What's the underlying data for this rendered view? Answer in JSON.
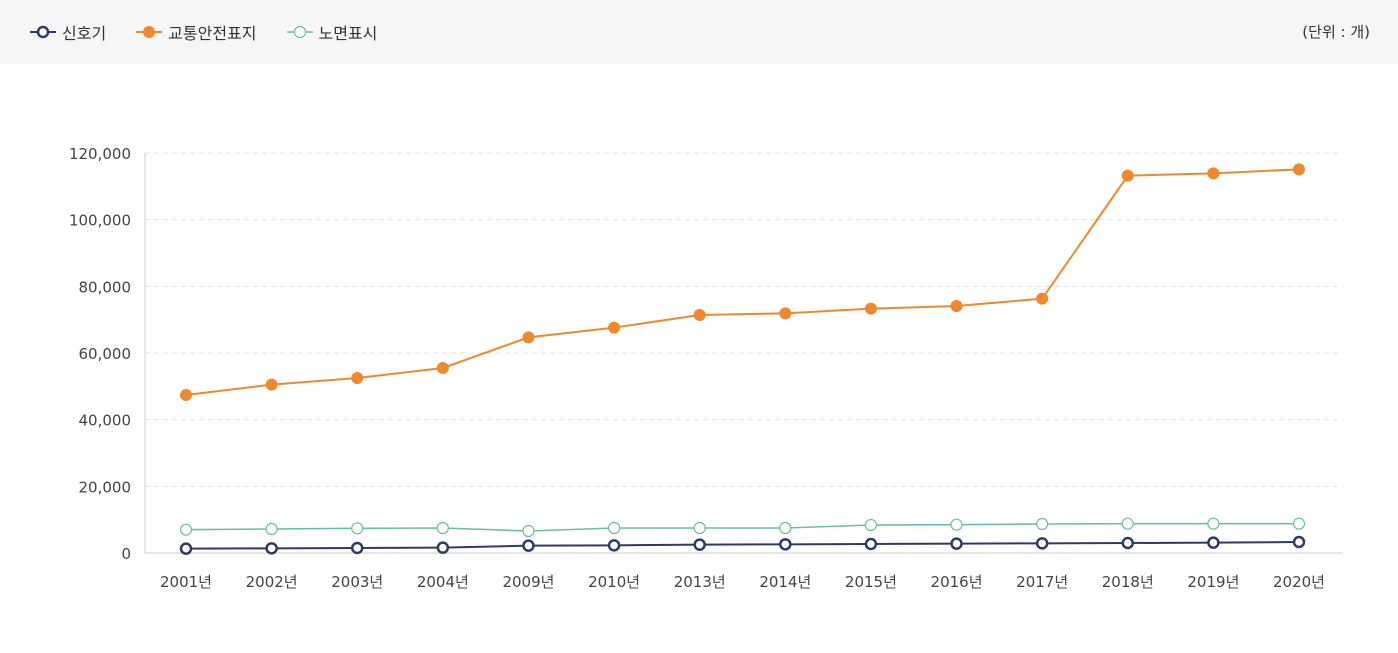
{
  "legend": [
    {
      "label": "신호기",
      "color": "#2f3a6b",
      "marker": "open"
    },
    {
      "label": "교통안전표지",
      "color": "#f0882d",
      "marker": "filled"
    },
    {
      "label": "노면표시",
      "color": "#6cc0a0",
      "marker": "open"
    }
  ],
  "unit_label": "(단위 : 개)",
  "chart_data": {
    "type": "line",
    "categories": [
      "2001년",
      "2002년",
      "2003년",
      "2004년",
      "2009년",
      "2010년",
      "2013년",
      "2014년",
      "2015년",
      "2016년",
      "2017년",
      "2018년",
      "2019년",
      "2020년"
    ],
    "ylim": [
      0,
      120000
    ],
    "yticks": [
      0,
      20000,
      40000,
      60000,
      80000,
      100000,
      120000
    ],
    "ytick_labels": [
      "0",
      "20,000",
      "40,000",
      "60,000",
      "80,000",
      "100,000",
      "120,000"
    ],
    "grid": true,
    "legend_position": "top-left",
    "series": [
      {
        "name": "신호기",
        "color": "#2f3a6b",
        "marker": "open",
        "values": [
          1300,
          1400,
          1500,
          1600,
          2200,
          2300,
          2500,
          2600,
          2700,
          2800,
          2900,
          3000,
          3100,
          3300
        ]
      },
      {
        "name": "교통안전표지",
        "color": "#f0882d",
        "marker": "filled",
        "values": [
          47400,
          50500,
          52500,
          55500,
          64700,
          67600,
          71400,
          71900,
          73300,
          74100,
          76300,
          113200,
          113900,
          115100
        ]
      },
      {
        "name": "노면표시",
        "color": "#6cc0a0",
        "marker": "open",
        "values": [
          7000,
          7200,
          7400,
          7500,
          6600,
          7500,
          7500,
          7500,
          8400,
          8500,
          8700,
          8800,
          8800,
          8800
        ]
      }
    ]
  }
}
